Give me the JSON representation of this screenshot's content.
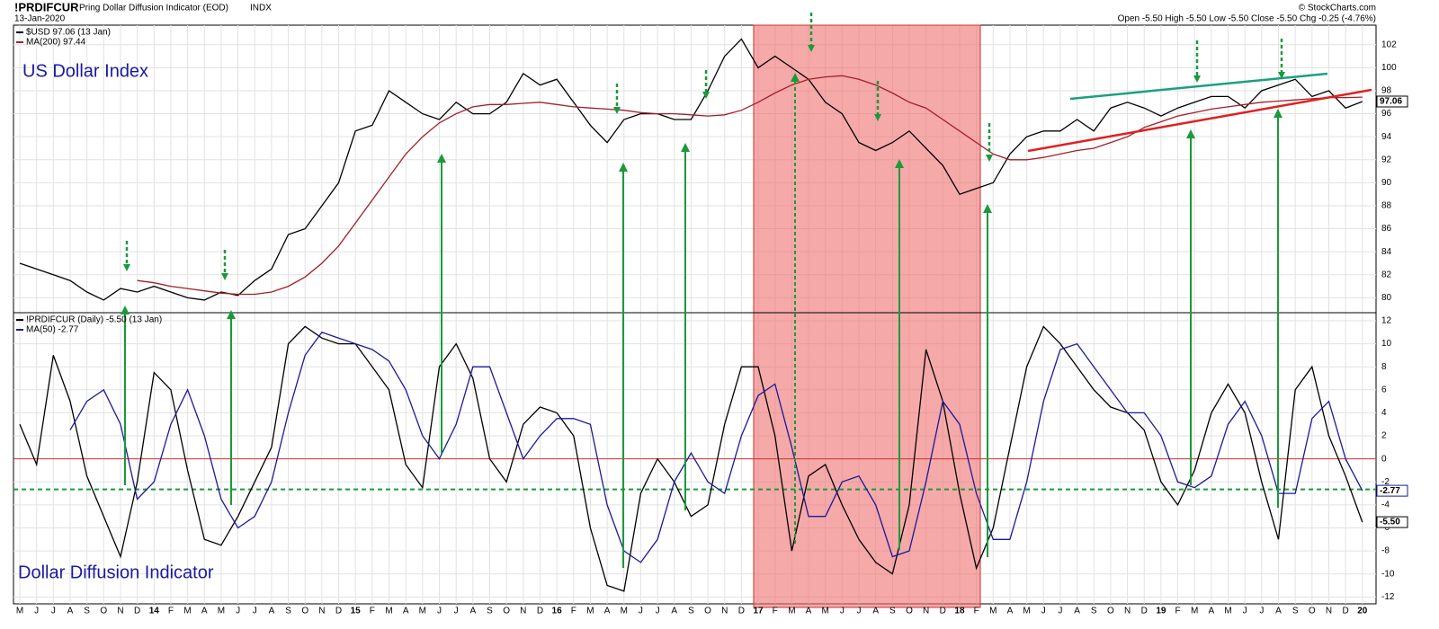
{
  "header": {
    "symbol": "!PRDIFCUR",
    "description": "Pring Dollar Diffusion Indicator (EOD)",
    "exchange": "INDX",
    "date": "13-Jan-2020",
    "quote": "Open -5.50 High -5.50 Low -5.50 Close -5.50 Chg -0.25 (-4.76%)",
    "copyright": "© StockCharts.com"
  },
  "chart_data": [
    {
      "type": "line",
      "title": "US Dollar Index",
      "ylim": [
        78.7,
        103.7
      ],
      "yticks": [
        80,
        82,
        84,
        86,
        88,
        90,
        92,
        94,
        96,
        98,
        100,
        102
      ],
      "grid": true,
      "series": [
        {
          "name": "$USD 97.06 (13 Jan)",
          "color": "#000000",
          "end_label": "97.06",
          "values": [
            83,
            82.5,
            82,
            81.5,
            80.5,
            79.8,
            80.8,
            80.5,
            81,
            80.5,
            80,
            79.8,
            80.5,
            80.2,
            81.5,
            82.5,
            85.5,
            86,
            88,
            90,
            94.5,
            95,
            98,
            97,
            96,
            95.5,
            97,
            96,
            96,
            97,
            99.5,
            98.5,
            99,
            97,
            95,
            93.5,
            95.5,
            96,
            96,
            95.5,
            95.5,
            98,
            101,
            102.5,
            100,
            101,
            100,
            99,
            97,
            96,
            93.5,
            92.8,
            93.5,
            94.5,
            93,
            91.5,
            89,
            89.5,
            90,
            92.5,
            94,
            94.5,
            94.5,
            95.5,
            94.5,
            96.5,
            97,
            96.5,
            95.8,
            96.5,
            97,
            97.5,
            97.5,
            96.5,
            98,
            98.5,
            99,
            97.5,
            98,
            96.5,
            97.06
          ]
        },
        {
          "name": "MA(200) 97.44",
          "color": "#a0202a",
          "values": [
            null,
            null,
            null,
            null,
            null,
            null,
            null,
            81.5,
            81.3,
            81,
            80.8,
            80.6,
            80.4,
            80.3,
            80.3,
            80.5,
            81,
            81.8,
            83,
            84.5,
            86.5,
            88.5,
            90.5,
            92.5,
            94,
            95.2,
            96,
            96.6,
            96.8,
            96.8,
            96.9,
            97,
            96.8,
            96.6,
            96.5,
            96.4,
            96.3,
            96.1,
            96,
            96,
            95.9,
            95.8,
            95.9,
            96.3,
            97,
            97.8,
            98.5,
            99,
            99.2,
            99.3,
            99,
            98.5,
            97.8,
            97,
            96.5,
            95.5,
            94.5,
            93.5,
            92.5,
            92,
            92,
            92.2,
            92.5,
            92.8,
            93,
            93.5,
            94,
            94.8,
            95.3,
            95.8,
            96.1,
            96.4,
            96.6,
            96.8,
            97,
            97.1,
            97.2,
            97.3,
            97.4,
            97.4,
            97.44
          ]
        }
      ]
    },
    {
      "type": "line",
      "title": "Dollar Diffusion Indicator",
      "ylim": [
        -12.6,
        12.7
      ],
      "yticks": [
        -12,
        -10,
        -8,
        -6,
        -4,
        -2,
        0,
        2,
        4,
        6,
        8,
        10,
        12
      ],
      "grid": true,
      "categories": [
        "M",
        "J",
        "J",
        "A",
        "S",
        "O",
        "N",
        "D",
        "14",
        "F",
        "M",
        "A",
        "M",
        "J",
        "J",
        "A",
        "S",
        "O",
        "N",
        "D",
        "15",
        "F",
        "M",
        "A",
        "M",
        "J",
        "J",
        "A",
        "S",
        "O",
        "N",
        "D",
        "16",
        "F",
        "M",
        "A",
        "M",
        "J",
        "J",
        "A",
        "S",
        "O",
        "N",
        "D",
        "17",
        "F",
        "M",
        "A",
        "M",
        "J",
        "J",
        "A",
        "S",
        "O",
        "N",
        "D",
        "18",
        "F",
        "M",
        "A",
        "M",
        "J",
        "J",
        "A",
        "S",
        "O",
        "N",
        "D",
        "19",
        "F",
        "M",
        "A",
        "M",
        "J",
        "J",
        "A",
        "S",
        "O",
        "N",
        "D",
        "20"
      ],
      "reference_lines": [
        {
          "value": 0,
          "color": "#cc3333",
          "dashed": false
        },
        {
          "value": -2.65,
          "color": "#1a9a3a",
          "dashed": true
        }
      ],
      "series": [
        {
          "name": "!PRDIFCUR (Daily) -5.50 (13 Jan)",
          "color": "#000000",
          "end_label": "-5.50",
          "values": [
            3,
            -0.5,
            9,
            5,
            -1.5,
            -5,
            -8.5,
            -2,
            7.5,
            6,
            -1,
            -7,
            -7.5,
            -5,
            -2,
            1,
            10,
            11.5,
            10.5,
            10,
            10,
            8,
            6,
            -0.5,
            -2.5,
            8,
            10,
            7,
            0,
            -2,
            3,
            4.5,
            4,
            2,
            -6,
            -11,
            -11.5,
            -3,
            0,
            -2,
            -5,
            -4,
            3,
            8,
            8,
            2,
            -8,
            -1.5,
            -0.5,
            -4,
            -7,
            -9,
            -10,
            -4,
            9.5,
            5,
            -3,
            -9.5,
            -6,
            1,
            8,
            11.5,
            10,
            8,
            6,
            4.5,
            4,
            2.5,
            -2,
            -4,
            -1,
            4,
            6.5,
            4,
            -2,
            -7,
            6,
            8,
            2,
            -1.5,
            -5.5
          ]
        },
        {
          "name": "MA(50) -2.77",
          "color": "#1a1a9a",
          "end_label": "-2.77",
          "values": [
            null,
            null,
            null,
            2.5,
            5,
            6,
            3,
            -3.5,
            -2,
            3,
            6,
            2,
            -3.5,
            -6,
            -5,
            -2,
            4,
            9,
            11,
            10.5,
            10,
            9.5,
            8.5,
            6,
            2,
            0,
            3,
            8,
            8,
            4,
            0,
            2,
            3.5,
            3.5,
            3,
            -4,
            -8,
            -9,
            -7,
            -2,
            0.5,
            -2,
            -3,
            2,
            5.5,
            6.5,
            1,
            -5,
            -5,
            -2,
            -1.5,
            -4,
            -8.5,
            -8,
            -2,
            5,
            3,
            -3,
            -7,
            -7,
            -2,
            5,
            9.5,
            10,
            8,
            6,
            4,
            4,
            2,
            -2,
            -2.5,
            -1.5,
            3,
            5,
            2,
            -3,
            -3,
            3.5,
            5,
            0,
            -2.77
          ]
        }
      ]
    }
  ]
}
